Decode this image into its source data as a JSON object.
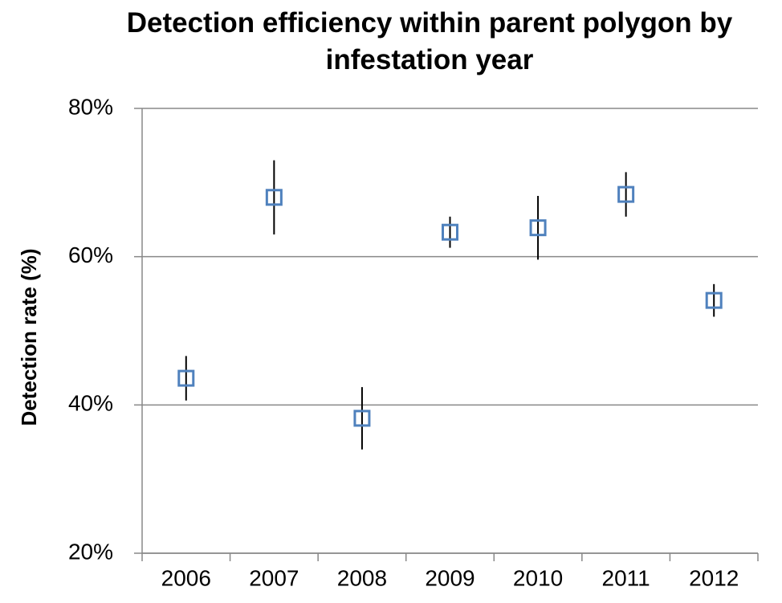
{
  "chart_data": {
    "type": "scatter",
    "title": "Detection efficiency within parent polygon by infestation year",
    "y_label": "Detection rate (%)",
    "categories": [
      "2006",
      "2007",
      "2008",
      "2009",
      "2010",
      "2011",
      "2012"
    ],
    "series": [
      {
        "color": "#4f81bd",
        "error_color": "#000000",
        "values": [
          43.6,
          68.0,
          38.2,
          63.3,
          63.9,
          68.4,
          54.1
        ],
        "errors": [
          3.0,
          5.0,
          4.2,
          2.1,
          4.3,
          3.0,
          2.2
        ]
      }
    ],
    "ylim": [
      20,
      80
    ],
    "yticks": [
      {
        "value": 20,
        "label": "20%"
      },
      {
        "value": 40,
        "label": "40%"
      },
      {
        "value": 60,
        "label": "60%"
      },
      {
        "value": 80,
        "label": "80%"
      }
    ],
    "grid": true
  }
}
